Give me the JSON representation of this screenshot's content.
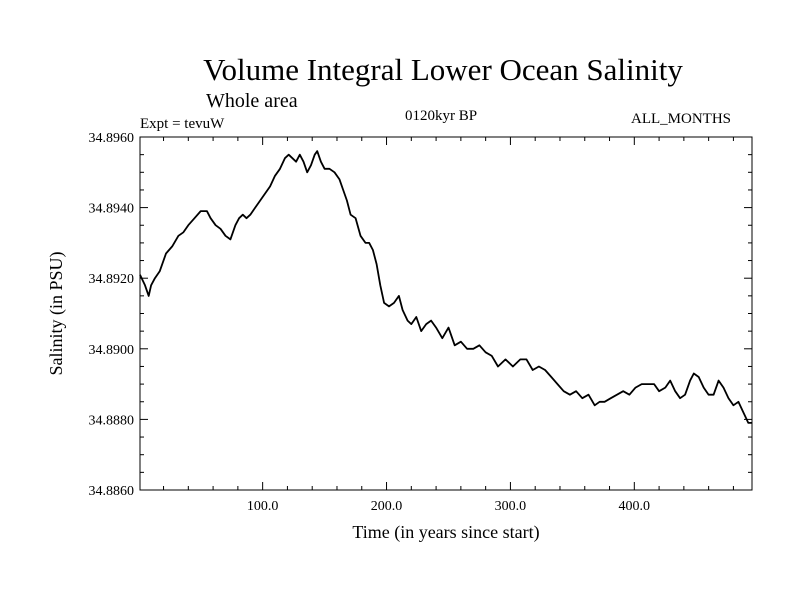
{
  "header": {
    "title": "Volume Integral Lower Ocean Salinity",
    "subtitle": "Whole area",
    "experiment": "Expt = tevuW",
    "period": "0120kyr BP",
    "months": "ALL_MONTHS"
  },
  "chart_data": {
    "type": "line",
    "title": "Volume Integral Lower Ocean Salinity",
    "subtitle": "Whole area",
    "xlabel": "Time (in years since start)",
    "ylabel": "Salinity (in PSU)",
    "xlim": [
      1,
      495
    ],
    "ylim": [
      34.886,
      34.896
    ],
    "x_ticks": [
      100,
      200,
      300,
      400
    ],
    "x_tick_labels": [
      "100.0",
      "200.0",
      "300.0",
      "400.0"
    ],
    "y_ticks": [
      34.886,
      34.888,
      34.89,
      34.892,
      34.894,
      34.896
    ],
    "y_tick_labels": [
      "34.8860",
      "34.8880",
      "34.8900",
      "34.8920",
      "34.8940",
      "34.8960"
    ],
    "grid": false,
    "series": [
      {
        "x": [
          1,
          5,
          8,
          10,
          13,
          17,
          22,
          27,
          32,
          36,
          40,
          45,
          50,
          55,
          58,
          62,
          66,
          70,
          74,
          78,
          81,
          84,
          87,
          90,
          94,
          98,
          102,
          106,
          110,
          114,
          118,
          121,
          124,
          127,
          130,
          133,
          136,
          139,
          142,
          144,
          147,
          150,
          154,
          158,
          162,
          165,
          168,
          171,
          175,
          179,
          183,
          186,
          189,
          192,
          195,
          198,
          202,
          206,
          210,
          213,
          217,
          220,
          224,
          228,
          232,
          236,
          240,
          245,
          250,
          255,
          260,
          265,
          270,
          275,
          280,
          285,
          290,
          296,
          302,
          308,
          313,
          318,
          323,
          328,
          333,
          338,
          343,
          348,
          353,
          358,
          363,
          368,
          372,
          376,
          381,
          386,
          391,
          396,
          401,
          406,
          411,
          416,
          420,
          425,
          429,
          433,
          437,
          441,
          445,
          448,
          452,
          456,
          460,
          464,
          468,
          472,
          476,
          480,
          484,
          488,
          492,
          495
        ],
        "values": [
          34.8921,
          34.8918,
          34.8915,
          34.8918,
          34.892,
          34.8922,
          34.8927,
          34.8929,
          34.8932,
          34.8933,
          34.8935,
          34.8937,
          34.8939,
          34.8939,
          34.8937,
          34.8935,
          34.8934,
          34.8932,
          34.8931,
          34.8935,
          34.8937,
          34.8938,
          34.8937,
          34.8938,
          34.894,
          34.8942,
          34.8944,
          34.8946,
          34.8949,
          34.8951,
          34.8954,
          34.8955,
          34.8954,
          34.8953,
          34.8955,
          34.8953,
          34.895,
          34.8952,
          34.8955,
          34.8956,
          34.8953,
          34.8951,
          34.8951,
          34.895,
          34.8948,
          34.8945,
          34.8942,
          34.8938,
          34.8937,
          34.8932,
          34.893,
          34.893,
          34.8928,
          34.8924,
          34.8918,
          34.8913,
          34.8912,
          34.8913,
          34.8915,
          34.8911,
          34.8908,
          34.8907,
          34.8909,
          34.8905,
          34.8907,
          34.8908,
          34.8906,
          34.8903,
          34.8906,
          34.8901,
          34.8902,
          34.89,
          34.89,
          34.8901,
          34.8899,
          34.8898,
          34.8895,
          34.8897,
          34.8895,
          34.8897,
          34.8897,
          34.8894,
          34.8895,
          34.8894,
          34.8892,
          34.889,
          34.8888,
          34.8887,
          34.8888,
          34.8886,
          34.8887,
          34.8884,
          34.8885,
          34.8885,
          34.8886,
          34.8887,
          34.8888,
          34.8887,
          34.8889,
          34.889,
          34.889,
          34.889,
          34.8888,
          34.8889,
          34.8891,
          34.8888,
          34.8886,
          34.8887,
          34.8891,
          34.8893,
          34.8892,
          34.8889,
          34.8887,
          34.8887,
          34.8891,
          34.8889,
          34.8886,
          34.8884,
          34.8885,
          34.8882,
          34.8879,
          34.8879
        ]
      }
    ]
  }
}
